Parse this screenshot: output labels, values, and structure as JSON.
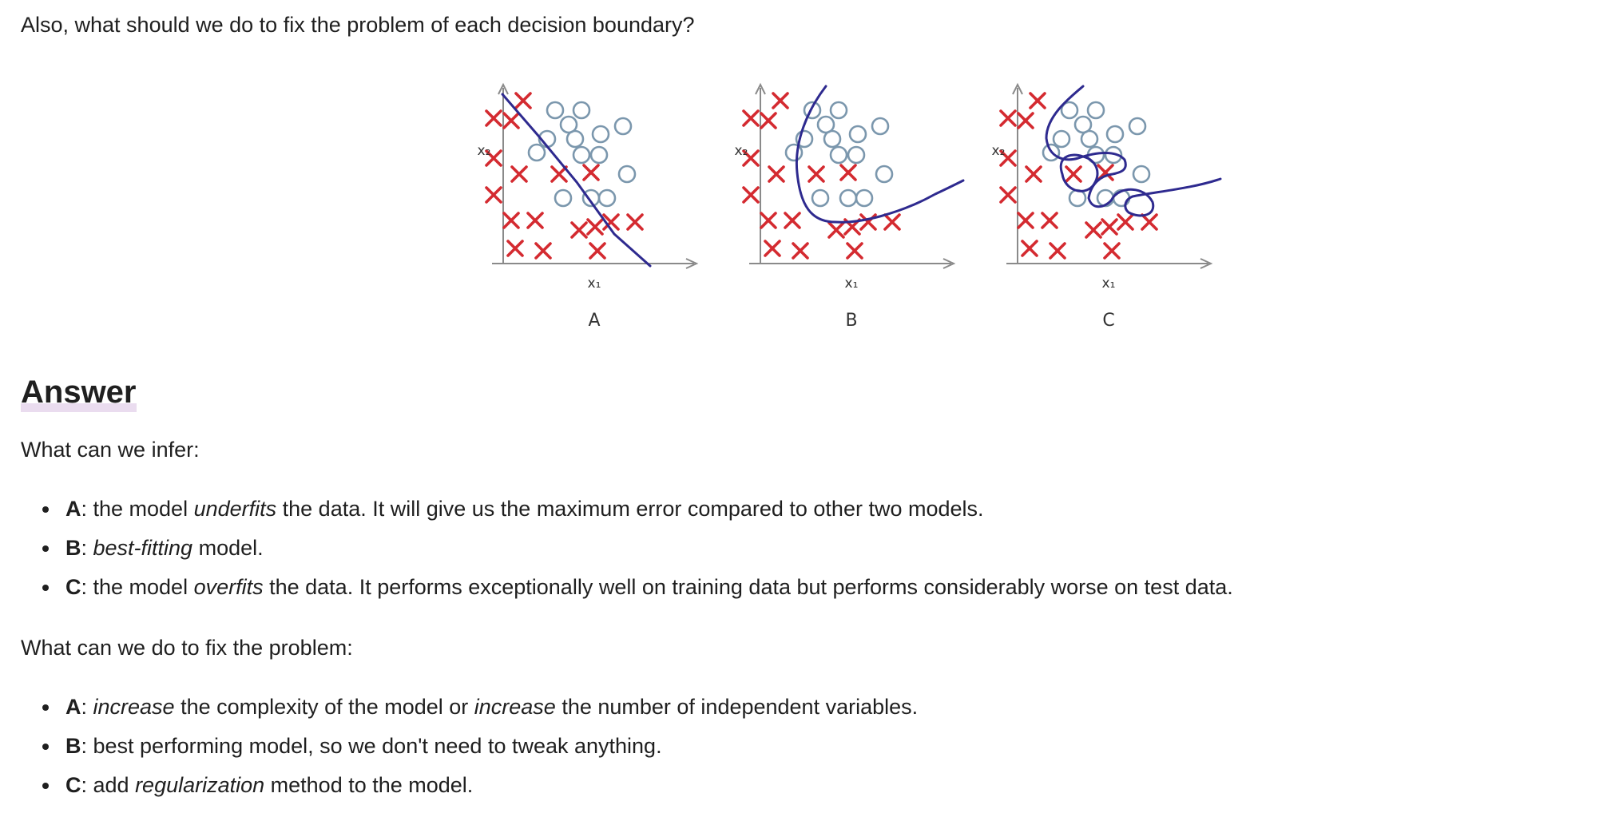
{
  "intro_text": "Also, what should we do to fix the problem of each decision boundary?",
  "figure": {
    "axis_x_label": "x₁",
    "axis_y_label": "x₂",
    "panels": [
      {
        "label": "A"
      },
      {
        "label": "B"
      },
      {
        "label": "C"
      }
    ],
    "colors": {
      "cross": "#d42a30",
      "circle": "#7b97ad",
      "boundary": "#2e2a8f",
      "axis": "#8a8a8a"
    }
  },
  "answer_heading": "Answer",
  "infer_intro": "What can we infer:",
  "infer_items": [
    {
      "letter": "A",
      "before": ": the model ",
      "em": "underfits",
      "after": " the data. It will give us the maximum error compared to other two models."
    },
    {
      "letter": "B",
      "before": ": ",
      "em": "best-fitting",
      "after": " model."
    },
    {
      "letter": "C",
      "before": ": the model ",
      "em": "overfits",
      "after": " the data. It performs exceptionally well on training data but performs considerably worse on test data."
    }
  ],
  "fix_intro": "What can we do to fix the problem:",
  "fix_items": [
    {
      "letter": "A",
      "before": ": ",
      "em": "increase",
      "middle": " the complexity of the model or ",
      "em2": "increase",
      "after": " the number of independent variables."
    },
    {
      "letter": "B",
      "before": ": best performing model, so we don't need to tweak anything.",
      "em": "",
      "after": ""
    },
    {
      "letter": "C",
      "before": ": add ",
      "em": "regularization",
      "after": " method to the model."
    }
  ]
}
